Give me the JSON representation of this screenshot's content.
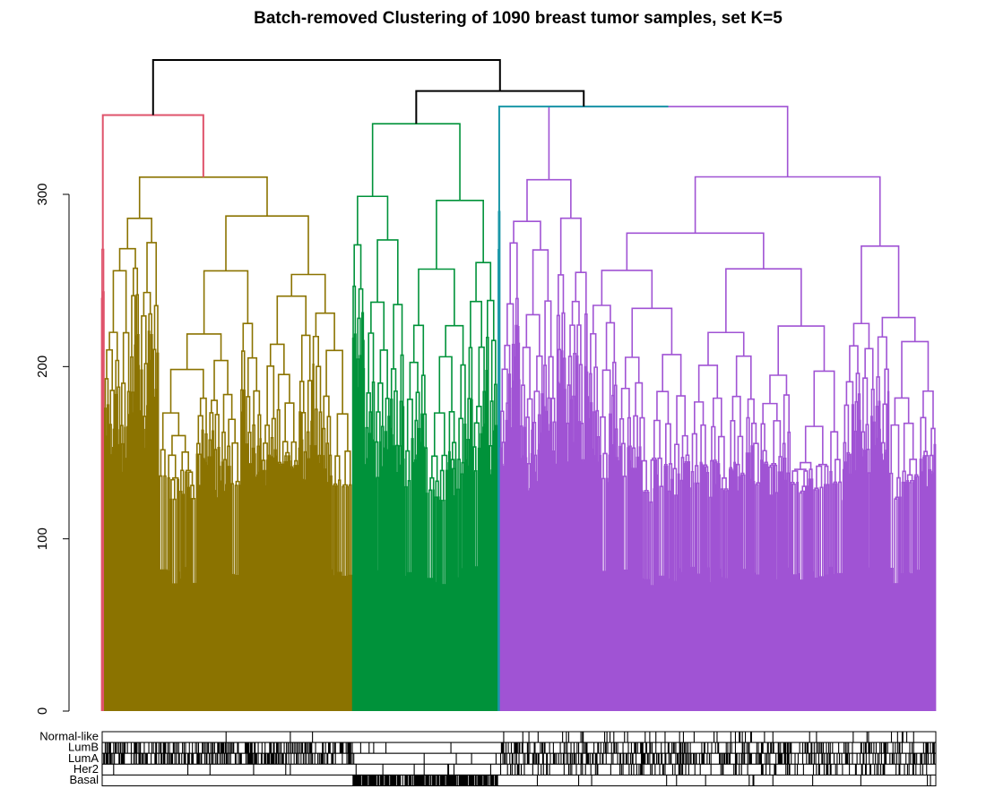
{
  "chart_data": {
    "type": "dendrogram",
    "title": "Batch-removed Clustering of 1090 breast tumor samples, set K=5",
    "xlabel": "",
    "ylabel": "",
    "ylim": [
      0,
      378
    ],
    "y_ticks": [
      0,
      100,
      200,
      300
    ],
    "y_tick_labels": [
      "0",
      "100",
      "200",
      "300"
    ],
    "n_samples": 1090,
    "k": 5,
    "grid": false,
    "legend": "none",
    "clusters": [
      {
        "id": 1,
        "color": "#DF536B",
        "sample_range": [
          0,
          4
        ],
        "merge_height": 268
      },
      {
        "id": 2,
        "color": "#8B7300",
        "sample_range": [
          4,
          328
        ],
        "merge_height": 310
      },
      {
        "id": 3,
        "color": "#00923A",
        "sample_range": [
          328,
          518
        ],
        "merge_height": 341
      },
      {
        "id": 4,
        "color": "#1A97A8",
        "sample_range": [
          518,
          521
        ],
        "merge_height": 290
      },
      {
        "id": 5,
        "color": "#A053D4",
        "sample_range": [
          521,
          1090
        ],
        "merge_height": 351
      }
    ],
    "top_merges": [
      {
        "left_height": 268,
        "right_height": 310,
        "height": 346,
        "color": "#DF536B"
      },
      {
        "left_height": 290,
        "right_height": 351,
        "height": 351,
        "color": "#1A97A8"
      },
      {
        "left_height": 341,
        "right_height": 351,
        "height": 360,
        "color": "#000000"
      },
      {
        "left_height": 346,
        "right_height": 360,
        "height": 378,
        "color": "#000000"
      }
    ],
    "annotation_tracks": [
      "Normal-like",
      "LumB",
      "LumA",
      "Her2",
      "Basal"
    ],
    "track_color_on": "#000000",
    "track_color_off": "#ffffff"
  }
}
